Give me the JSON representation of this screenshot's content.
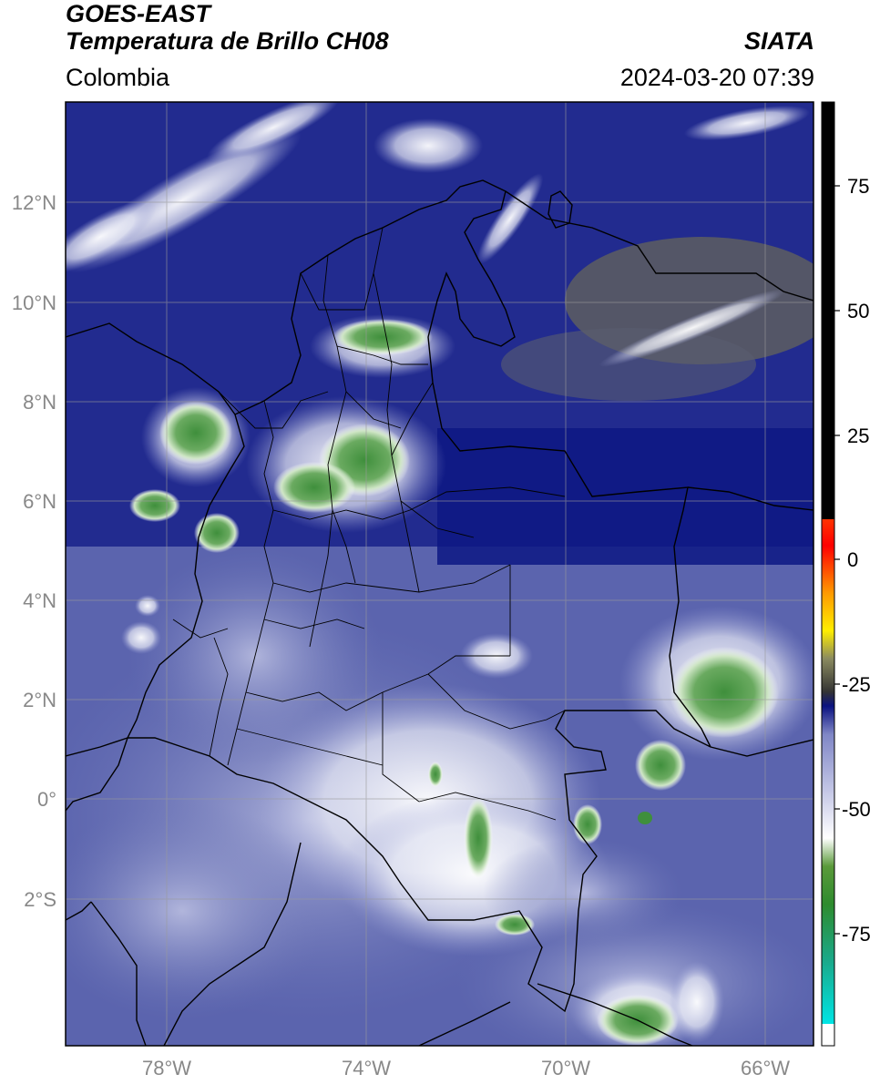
{
  "header": {
    "satellite": "GOES-EAST",
    "product": "Temperatura de Brillo CH08",
    "region": "Colombia",
    "source": "SIATA",
    "datetime": "2024-03-20 07:39"
  },
  "map": {
    "lat_ticks": [
      "12°N",
      "10°N",
      "8°N",
      "6°N",
      "4°N",
      "2°N",
      "0°",
      "2°S"
    ],
    "lon_ticks": [
      "78°W",
      "74°W",
      "70°W",
      "66°W"
    ],
    "colors": {
      "background": "#222b8f",
      "deep": "#101a80",
      "mid": "#6f78b8",
      "light": "#c7cbe6",
      "cloud": "#ffffff",
      "green": "#3f8f3c",
      "green_light": "#9cc890",
      "olive": "#6a6a56",
      "border": "#000000",
      "grid": "#9a9a9a"
    }
  },
  "colorbar": {
    "labels": [
      "75",
      "50",
      "25",
      "0",
      "-25",
      "-50",
      "-75"
    ],
    "colors": [
      "#000000",
      "#ff0000",
      "#ff9900",
      "#ffee00",
      "#333333",
      "#0a1280",
      "#9aa0d6",
      "#ffffff",
      "#2e8b2e",
      "#00e5e5",
      "#ffffff"
    ]
  }
}
